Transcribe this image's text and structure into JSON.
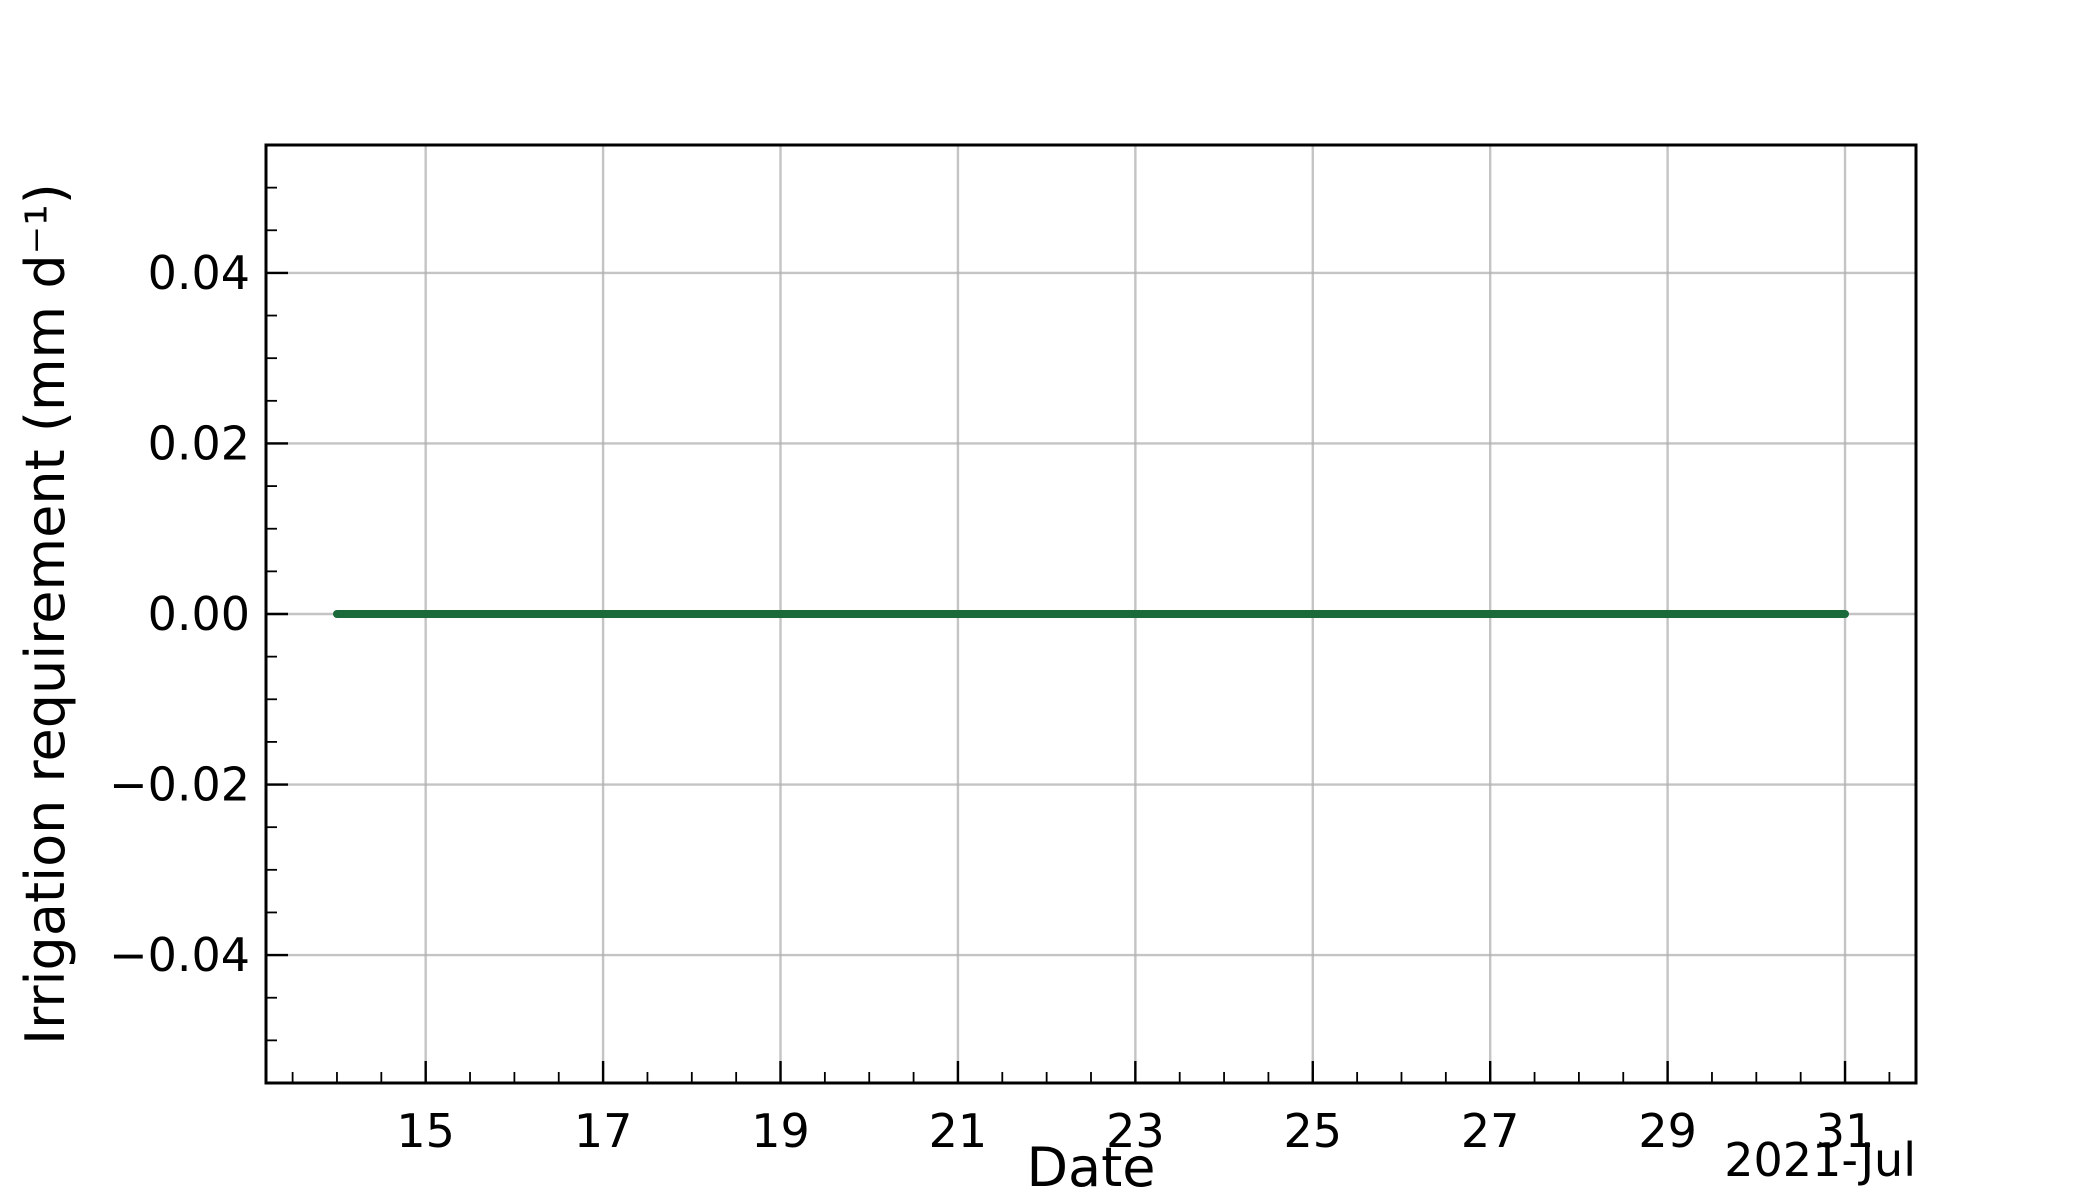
{
  "chart_data": {
    "type": "line",
    "title": "",
    "xlabel": "Date",
    "ylabel": "Irrigation requirement (mm d⁻¹)",
    "x_axis_offset_label": "2021-Jul",
    "xlim": [
      "2021-07-13T04:48",
      "2021-07-31T19:12"
    ],
    "ylim": [
      -0.055,
      0.055
    ],
    "x_ticks": [
      {
        "date": "2021-07-15",
        "label": "15"
      },
      {
        "date": "2021-07-17",
        "label": "17"
      },
      {
        "date": "2021-07-19",
        "label": "19"
      },
      {
        "date": "2021-07-21",
        "label": "21"
      },
      {
        "date": "2021-07-23",
        "label": "23"
      },
      {
        "date": "2021-07-25",
        "label": "25"
      },
      {
        "date": "2021-07-27",
        "label": "27"
      },
      {
        "date": "2021-07-29",
        "label": "29"
      },
      {
        "date": "2021-07-31",
        "label": "31"
      }
    ],
    "y_ticks": [
      {
        "value": 0.04,
        "label": "0.04"
      },
      {
        "value": 0.02,
        "label": "0.02"
      },
      {
        "value": 0.0,
        "label": "0.00"
      },
      {
        "value": -0.02,
        "label": "−0.02"
      },
      {
        "value": -0.04,
        "label": "−0.04"
      }
    ],
    "grid": true,
    "series": [
      {
        "color": "#1b6b3a",
        "x": [
          "2021-07-14",
          "2021-07-15",
          "2021-07-16",
          "2021-07-17",
          "2021-07-18",
          "2021-07-19",
          "2021-07-20",
          "2021-07-21",
          "2021-07-22",
          "2021-07-23",
          "2021-07-24",
          "2021-07-25",
          "2021-07-26",
          "2021-07-27",
          "2021-07-28",
          "2021-07-29",
          "2021-07-30",
          "2021-07-31"
        ],
        "y": [
          0,
          0,
          0,
          0,
          0,
          0,
          0,
          0,
          0,
          0,
          0,
          0,
          0,
          0,
          0,
          0,
          0,
          0
        ]
      }
    ]
  }
}
